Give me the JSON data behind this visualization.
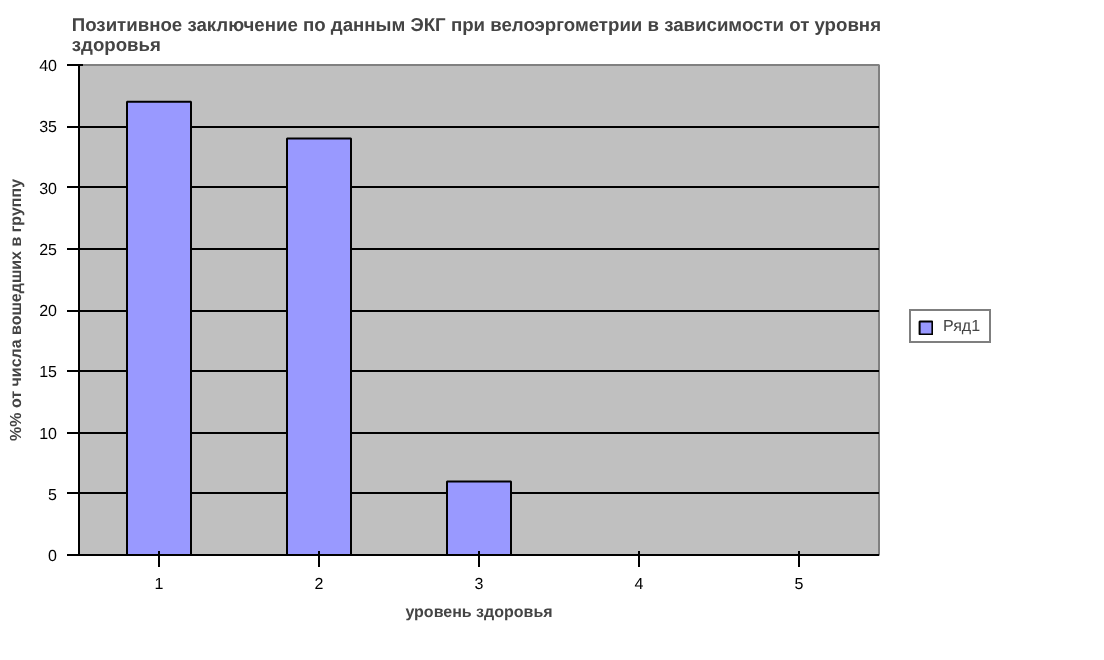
{
  "chart_data": {
    "type": "bar",
    "title": "Позитивное заключение по данным ЭКГ при  велоэргометрии в зависимости от уровня здоровья",
    "xlabel": "уровень здоровья",
    "ylabel": "%% от числа вошедших в группу",
    "categories": [
      "1",
      "2",
      "3",
      "4",
      "5"
    ],
    "series": [
      {
        "name": "Ряд1",
        "color": "#9999ff",
        "values": [
          37,
          34,
          6,
          0,
          0
        ]
      }
    ],
    "ylim": [
      0,
      40
    ],
    "yticks": [
      0,
      5,
      10,
      15,
      20,
      25,
      30,
      35,
      40
    ],
    "grid": "y",
    "legend": "right"
  }
}
